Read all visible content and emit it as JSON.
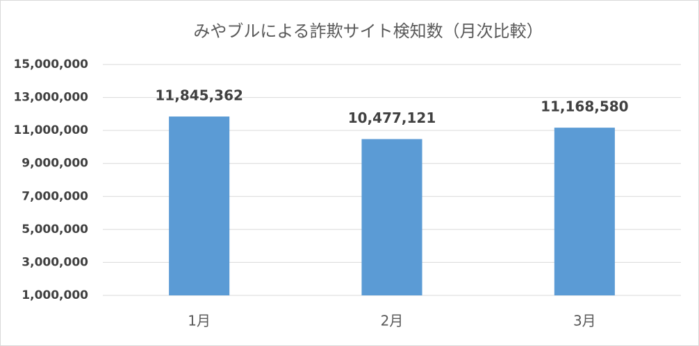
{
  "chart_data": {
    "type": "bar",
    "title": "みやブルによる詐欺サイト検知数（月次比較）",
    "categories": [
      "1月",
      "2月",
      "3月"
    ],
    "values": [
      11845362,
      10477121,
      11168580
    ],
    "value_labels": [
      "11,845,362",
      "10,477,121",
      "11,168,580"
    ],
    "color": "#5b9bd5",
    "ylim": [
      1000000,
      15000000
    ],
    "yticks": [
      {
        "value": 1000000,
        "label": "1,000,000"
      },
      {
        "value": 3000000,
        "label": "3,000,000"
      },
      {
        "value": 5000000,
        "label": "5,000,000"
      },
      {
        "value": 7000000,
        "label": "7,000,000"
      },
      {
        "value": 9000000,
        "label": "9,000,000"
      },
      {
        "value": 11000000,
        "label": "11,000,000"
      },
      {
        "value": 13000000,
        "label": "13,000,000"
      },
      {
        "value": 15000000,
        "label": "15,000,000"
      }
    ],
    "grid": true
  }
}
